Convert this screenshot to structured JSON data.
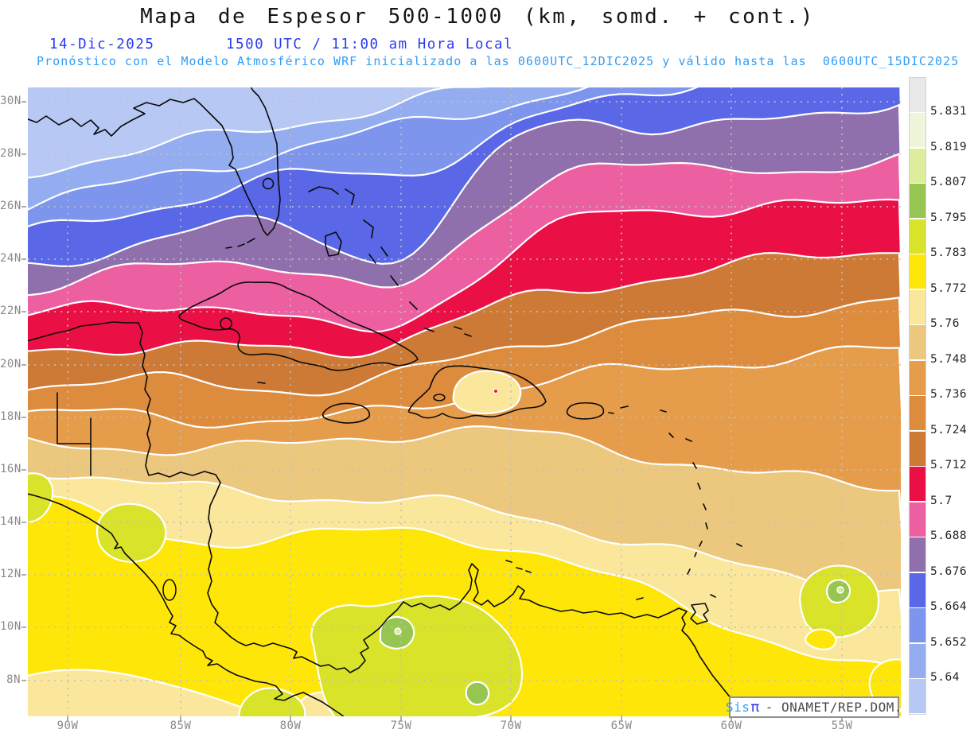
{
  "header": {
    "title": "Mapa de Espesor 500-1000 (km, somd. + cont.)",
    "date": "14-Dic-2025",
    "time_line": "1500 UTC / 11:00 am Hora Local",
    "model_line": "Pronóstico con el Modelo Atmosférico WRF inicializado a las 0600UTC_12DIC2025 y válido hasta las  0600UTC_15DIC2025"
  },
  "axes": {
    "lat_labels": [
      "30N",
      "28N",
      "26N",
      "24N",
      "22N",
      "20N",
      "18N",
      "16N",
      "14N",
      "12N",
      "10N",
      "8N"
    ],
    "lon_labels": [
      "90W",
      "85W",
      "80W",
      "75W",
      "70W",
      "65W",
      "60W",
      "55W"
    ]
  },
  "colorbar": {
    "labels": [
      "5.831",
      "5.819",
      "5.807",
      "5.795",
      "5.783",
      "5.772",
      "5.76",
      "5.748",
      "5.736",
      "5.724",
      "5.712",
      "5.7",
      "5.688",
      "5.676",
      "5.664",
      "5.652",
      "5.64"
    ],
    "colors": [
      "#e8e8e8",
      "#eef5d8",
      "#dced9e",
      "#97c551",
      "#d8e32a",
      "#ffe609",
      "#fbe79b",
      "#ecc87e",
      "#e59c4b",
      "#dd8c3e",
      "#cc7a36",
      "#ea1046",
      "#ec5fa1",
      "#8f70ac",
      "#5a67e6",
      "#7d95ec",
      "#93adf0",
      "#b7c8f4"
    ]
  },
  "attribution": {
    "sis": "Sis",
    "pi": "π",
    "rest": "- ONAMET/REP.DOM."
  },
  "map_style": {
    "coastline_color": "#0a0a0a",
    "grid_color": "#c0c0c0",
    "contour_line_color": "#ffffff",
    "tick_color": "#999999"
  },
  "chart_data": {
    "type": "heatmap",
    "title": "Espesor 500-1000 (km, somd. + cont.)",
    "units": "km",
    "levels": [
      5.64,
      5.652,
      5.664,
      5.676,
      5.688,
      5.7,
      5.712,
      5.724,
      5.736,
      5.748,
      5.76,
      5.772,
      5.783,
      5.795,
      5.807,
      5.819,
      5.831
    ],
    "lat_ticks_deg_N": [
      30,
      28,
      26,
      24,
      22,
      20,
      18,
      16,
      14,
      12,
      10,
      8
    ],
    "lon_ticks_deg_W": [
      90,
      85,
      80,
      75,
      70,
      65,
      60,
      55
    ],
    "gradient_note": "thickness increases from NW (below 5.64, pale blue) to S/SE (above 5.783, yellow-green patches)"
  }
}
